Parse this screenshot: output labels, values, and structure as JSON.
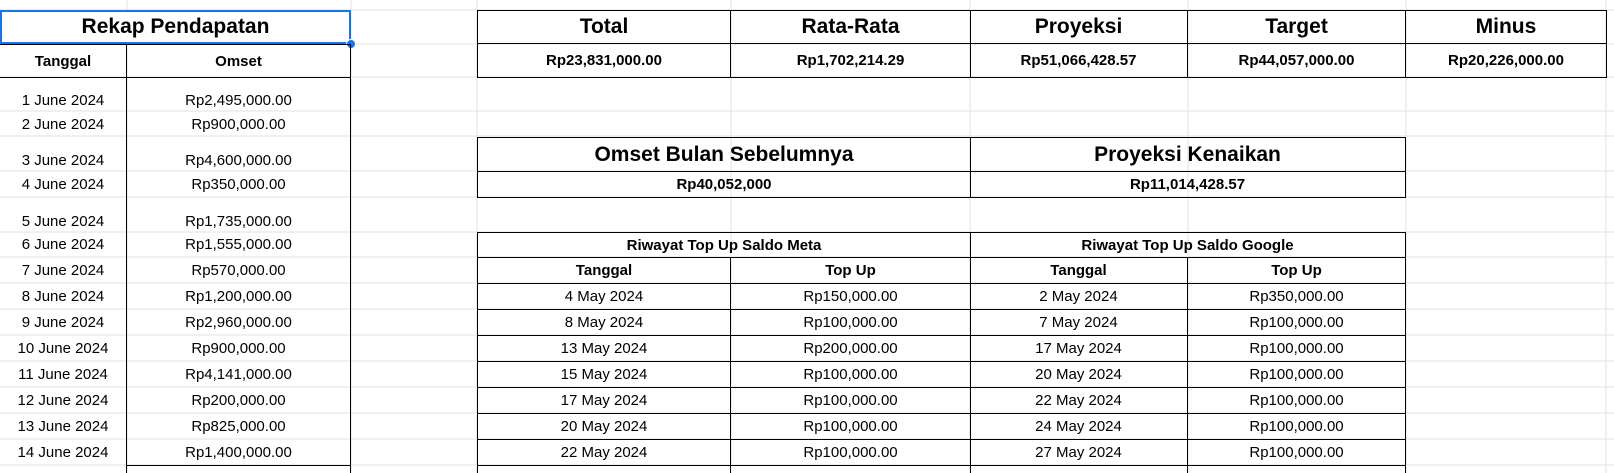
{
  "rekap": {
    "title": "Rekap Pendapatan",
    "col_tanggal": "Tanggal",
    "col_omset": "Omset",
    "rows": [
      {
        "tanggal": "1 June 2024",
        "omset": "Rp2,495,000.00"
      },
      {
        "tanggal": "2 June 2024",
        "omset": "Rp900,000.00"
      },
      {
        "tanggal": "3 June 2024",
        "omset": "Rp4,600,000.00"
      },
      {
        "tanggal": "4 June 2024",
        "omset": "Rp350,000.00"
      },
      {
        "tanggal": "5 June 2024",
        "omset": "Rp1,735,000.00"
      },
      {
        "tanggal": "6 June 2024",
        "omset": "Rp1,555,000.00"
      },
      {
        "tanggal": "7 June 2024",
        "omset": "Rp570,000.00"
      },
      {
        "tanggal": "8 June 2024",
        "omset": "Rp1,200,000.00"
      },
      {
        "tanggal": "9 June 2024",
        "omset": "Rp2,960,000.00"
      },
      {
        "tanggal": "10 June 2024",
        "omset": "Rp900,000.00"
      },
      {
        "tanggal": "11 June 2024",
        "omset": "Rp4,141,000.00"
      },
      {
        "tanggal": "12 June 2024",
        "omset": "Rp200,000.00"
      },
      {
        "tanggal": "13 June 2024",
        "omset": "Rp825,000.00"
      },
      {
        "tanggal": "14 June 2024",
        "omset": "Rp1,400,000.00"
      }
    ]
  },
  "summary": {
    "headers": [
      "Total",
      "Rata-Rata",
      "Proyeksi",
      "Target",
      "Minus"
    ],
    "values": [
      "Rp23,831,000.00",
      "Rp1,702,214.29",
      "Rp51,066,428.57",
      "Rp44,057,000.00",
      "Rp20,226,000.00"
    ]
  },
  "comparison": {
    "prev_title": "Omset Bulan Sebelumnya",
    "prev_value": "Rp40,052,000",
    "proj_title": "Proyeksi Kenaikan",
    "proj_value": "Rp11,014,428.57"
  },
  "topup": {
    "meta_title": "Riwayat Top Up Saldo Meta",
    "google_title": "Riwayat Top Up Saldo Google",
    "col_tanggal": "Tanggal",
    "col_topup": "Top Up",
    "meta_rows": [
      {
        "tanggal": "4 May 2024",
        "amount": "Rp150,000.00"
      },
      {
        "tanggal": "8 May 2024",
        "amount": "Rp100,000.00"
      },
      {
        "tanggal": "13 May 2024",
        "amount": "Rp200,000.00"
      },
      {
        "tanggal": "15 May 2024",
        "amount": "Rp100,000.00"
      },
      {
        "tanggal": "17 May 2024",
        "amount": "Rp100,000.00"
      },
      {
        "tanggal": "20 May 2024",
        "amount": "Rp100,000.00"
      },
      {
        "tanggal": "22 May 2024",
        "amount": "Rp100,000.00"
      }
    ],
    "google_rows": [
      {
        "tanggal": "2 May 2024",
        "amount": "Rp350,000.00"
      },
      {
        "tanggal": "7 May 2024",
        "amount": "Rp100,000.00"
      },
      {
        "tanggal": "17 May 2024",
        "amount": "Rp100,000.00"
      },
      {
        "tanggal": "20 May 2024",
        "amount": "Rp100,000.00"
      },
      {
        "tanggal": "22 May 2024",
        "amount": "Rp100,000.00"
      },
      {
        "tanggal": "24 May 2024",
        "amount": "Rp100,000.00"
      },
      {
        "tanggal": "27 May 2024",
        "amount": "Rp100,000.00"
      }
    ]
  }
}
